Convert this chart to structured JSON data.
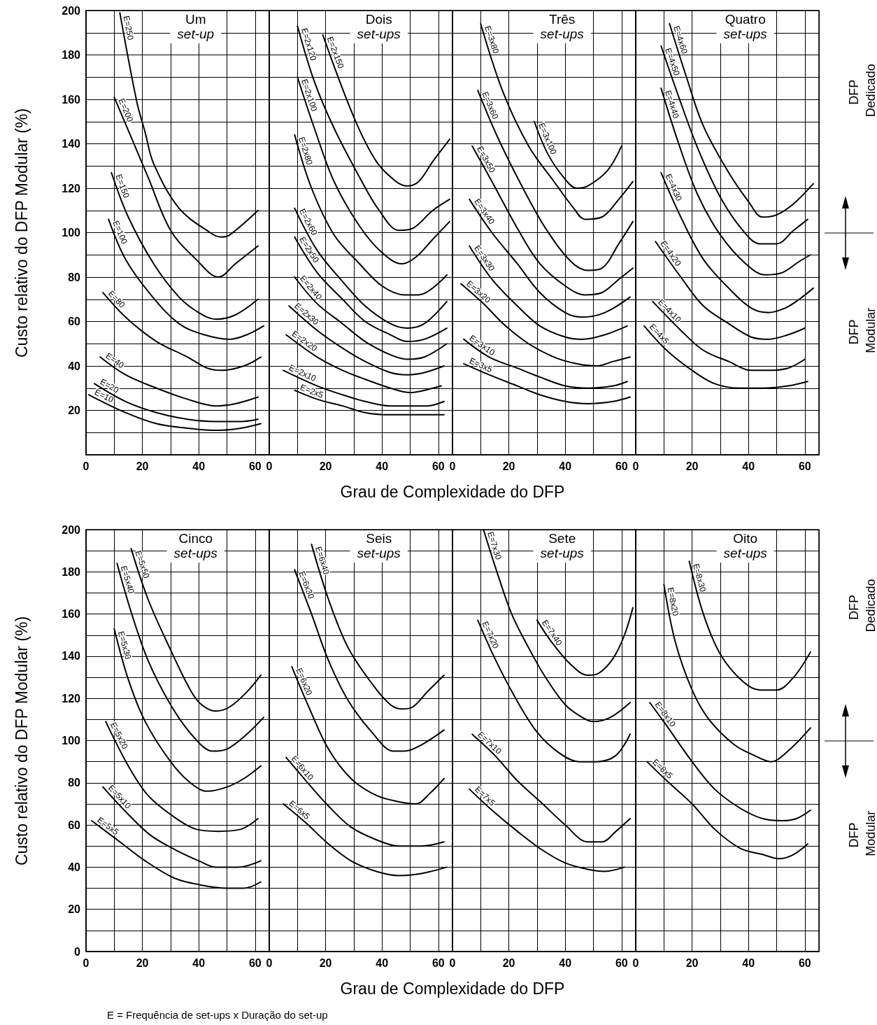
{
  "chart_data": [
    {
      "type": "line",
      "title": "Um",
      "subtitle": "set-up",
      "ylabel": "Custo relativo do DFP Modular (%)",
      "xlabel": "Grau de Complexidade do DFP",
      "xlim": [
        0,
        65
      ],
      "xticks": [
        0,
        20,
        40,
        60
      ],
      "ylim": [
        0,
        200
      ],
      "yticks": [
        20,
        40,
        60,
        80,
        100,
        120,
        140,
        160,
        180,
        200
      ],
      "grid": true,
      "marker": "none",
      "color": "#000000",
      "series": [
        {
          "name": "E=250",
          "x": [
            12,
            18,
            21,
            24,
            33,
            44,
            48,
            51,
            61
          ],
          "values": [
            199,
            159,
            145,
            131,
            111,
            100,
            98,
            99,
            110
          ]
        },
        {
          "name": "E=200",
          "x": [
            10,
            16,
            22,
            30,
            39,
            47,
            53,
            61
          ],
          "values": [
            161,
            143,
            125,
            101,
            88,
            80,
            86,
            94
          ]
        },
        {
          "name": "E=150",
          "x": [
            9,
            15,
            24,
            33,
            40,
            46,
            53,
            61
          ],
          "values": [
            127,
            107,
            86,
            71,
            64,
            61,
            63,
            70
          ]
        },
        {
          "name": "E=100",
          "x": [
            8,
            14,
            23,
            33,
            42,
            51,
            57,
            63
          ],
          "values": [
            106,
            88,
            72,
            59,
            54,
            52,
            54,
            58
          ]
        },
        {
          "name": "E=80",
          "x": [
            6,
            14,
            25,
            36,
            43,
            48,
            56,
            62
          ],
          "values": [
            73,
            62,
            51,
            44,
            39,
            38,
            40,
            44
          ]
        },
        {
          "name": "E=40",
          "x": [
            5,
            14,
            25,
            36,
            46,
            53,
            61
          ],
          "values": [
            44,
            36,
            30,
            25,
            22,
            23,
            26
          ]
        },
        {
          "name": "E=20",
          "x": [
            3,
            14,
            25,
            36,
            46,
            55,
            61
          ],
          "values": [
            32,
            24,
            19,
            16,
            15,
            15,
            16
          ]
        },
        {
          "name": "E=10",
          "x": [
            1,
            14,
            25,
            36,
            46,
            55,
            62
          ],
          "values": [
            27,
            19,
            14,
            12,
            11,
            12,
            14
          ]
        }
      ]
    },
    {
      "type": "line",
      "title": "Dois",
      "subtitle": "set-ups",
      "xlim": [
        0,
        65
      ],
      "xticks": [
        0,
        20,
        40,
        60
      ],
      "ylim": [
        0,
        200
      ],
      "yticks": [
        20,
        40,
        60,
        80,
        100,
        120,
        140,
        160,
        180,
        200
      ],
      "tick_labels": "x",
      "grid": true,
      "marker": "none",
      "color": "#000000",
      "series": [
        {
          "name": "E=2x150",
          "x": [
            19,
            30,
            38,
            45,
            49,
            53,
            58,
            64
          ],
          "values": [
            189,
            152,
            132,
            123,
            121,
            123,
            132,
            142
          ]
        },
        {
          "name": "E=2x120",
          "x": [
            10,
            16,
            23,
            32,
            39,
            46,
            51,
            58,
            64
          ],
          "values": [
            193,
            168,
            147,
            125,
            110,
            101,
            102,
            110,
            115
          ]
        },
        {
          "name": "E=2x100",
          "x": [
            10,
            16,
            23,
            32,
            40,
            47,
            52,
            58,
            64
          ],
          "values": [
            170,
            147,
            123,
            103,
            91,
            86,
            89,
            97,
            105
          ]
        },
        {
          "name": "E=2x80",
          "x": [
            9,
            15,
            23,
            32,
            40,
            48,
            53,
            63
          ],
          "values": [
            144,
            120,
            99,
            86,
            76,
            72,
            72,
            81
          ]
        },
        {
          "name": "E=2x60",
          "x": [
            9,
            17,
            26,
            34,
            43,
            49,
            55,
            63
          ],
          "values": [
            111,
            92,
            78,
            67,
            59,
            57,
            59,
            69
          ]
        },
        {
          "name": "E=2x50",
          "x": [
            9,
            17,
            26,
            34,
            43,
            49,
            55,
            63
          ],
          "values": [
            98,
            82,
            70,
            60,
            54,
            51,
            52,
            57
          ]
        },
        {
          "name": "E=2x40",
          "x": [
            9,
            17,
            26,
            34,
            43,
            49,
            55,
            63
          ],
          "values": [
            80,
            68,
            59,
            51,
            45,
            43,
            44,
            50
          ]
        },
        {
          "name": "E=2x30",
          "x": [
            7,
            17,
            26,
            34,
            43,
            49,
            55,
            62
          ],
          "values": [
            67,
            56,
            48,
            42,
            37,
            36,
            37,
            40
          ]
        },
        {
          "name": "E=2x20",
          "x": [
            6,
            17,
            26,
            34,
            43,
            50,
            55,
            61
          ],
          "values": [
            54,
            44,
            38,
            34,
            30,
            28,
            29,
            31
          ]
        },
        {
          "name": "E=2x10",
          "x": [
            5,
            17,
            26,
            34,
            43,
            51,
            56,
            62
          ],
          "values": [
            38,
            31,
            27,
            24,
            22,
            22,
            22,
            24
          ]
        },
        {
          "name": "E=2x5",
          "x": [
            9,
            17,
            26,
            34,
            43,
            51,
            62
          ],
          "values": [
            29,
            25,
            22,
            19,
            18,
            18,
            18
          ]
        }
      ]
    },
    {
      "type": "line",
      "title": "Três",
      "subtitle": "set-ups",
      "xlim": [
        0,
        65
      ],
      "xticks": [
        0,
        20,
        40,
        60
      ],
      "ylim": [
        0,
        200
      ],
      "yticks": [
        20,
        40,
        60,
        80,
        100,
        120,
        140,
        160,
        180,
        200
      ],
      "tick_labels": "x",
      "grid": true,
      "marker": "none",
      "color": "#000000",
      "series": [
        {
          "name": "E=3x80",
          "x": [
            10,
            18,
            27,
            36,
            43,
            47,
            53,
            59,
            64
          ],
          "values": [
            194,
            163,
            139,
            123,
            111,
            106,
            107,
            115,
            123
          ]
        },
        {
          "name": "E=3x60",
          "x": [
            9,
            16,
            25,
            33,
            42,
            48,
            53,
            59,
            64
          ],
          "values": [
            164,
            143,
            120,
            102,
            87,
            83,
            84,
            95,
            105
          ]
        },
        {
          "name": "E=3x100",
          "x": [
            29,
            34,
            40,
            44,
            48,
            55,
            60
          ],
          "values": [
            150,
            135,
            124,
            120,
            121,
            128,
            139
          ]
        },
        {
          "name": "E=3x50",
          "x": [
            7,
            14,
            23,
            31,
            40,
            47,
            53,
            59,
            64
          ],
          "values": [
            139,
            123,
            102,
            86,
            76,
            72,
            73,
            79,
            84
          ]
        },
        {
          "name": "E=3x40",
          "x": [
            6,
            14,
            23,
            31,
            40,
            46,
            54,
            63
          ],
          "values": [
            115,
            100,
            86,
            73,
            64,
            62,
            64,
            71
          ]
        },
        {
          "name": "E=3x30",
          "x": [
            6,
            14,
            23,
            31,
            40,
            46,
            54,
            62
          ],
          "values": [
            94,
            79,
            67,
            58,
            53,
            52,
            54,
            58
          ]
        },
        {
          "name": "E=3x20",
          "x": [
            3,
            11,
            18,
            27,
            36,
            44,
            51,
            57,
            63
          ],
          "values": [
            77,
            68,
            59,
            50,
            44,
            41,
            40,
            42,
            44
          ]
        },
        {
          "name": "E=3x10",
          "x": [
            4,
            13,
            23,
            31,
            40,
            48,
            57,
            62
          ],
          "values": [
            52,
            44,
            39,
            35,
            31,
            30,
            31,
            33
          ]
        },
        {
          "name": "E=3x5",
          "x": [
            4,
            13,
            23,
            31,
            40,
            48,
            57,
            63
          ],
          "values": [
            41,
            36,
            31,
            27,
            24,
            23,
            24,
            26
          ]
        }
      ]
    },
    {
      "type": "line",
      "title": "Quatro",
      "subtitle": "set-ups",
      "annotations": [
        "DFP Dedicado",
        "DFP Modular"
      ],
      "xlim": [
        0,
        65
      ],
      "xticks": [
        0,
        20,
        40,
        60
      ],
      "ylim": [
        0,
        200
      ],
      "yticks": [
        20,
        40,
        60,
        80,
        100,
        120,
        140,
        160,
        180,
        200
      ],
      "tick_labels": "x",
      "grid": true,
      "marker": "none",
      "color": "#000000",
      "series": [
        {
          "name": "E=4x60",
          "x": [
            12,
            18,
            24,
            33,
            40,
            45,
            50,
            56,
            63
          ],
          "values": [
            194,
            170,
            148,
            127,
            114,
            107,
            108,
            113,
            122
          ]
        },
        {
          "name": "E=4x50",
          "x": [
            9,
            15,
            22,
            30,
            38,
            44,
            50,
            56,
            61
          ],
          "values": [
            184,
            162,
            138,
            116,
            101,
            95,
            95,
            101,
            106
          ]
        },
        {
          "name": "E=4x40",
          "x": [
            9,
            15,
            22,
            30,
            39,
            46,
            52,
            58,
            62
          ],
          "values": [
            165,
            141,
            117,
            99,
            86,
            81,
            82,
            87,
            90
          ]
        },
        {
          "name": "E=4x30",
          "x": [
            9,
            16,
            24,
            33,
            41,
            47,
            53,
            58,
            63
          ],
          "values": [
            127,
            107,
            88,
            75,
            66,
            64,
            66,
            70,
            75
          ]
        },
        {
          "name": "E=4x20",
          "x": [
            7,
            16,
            24,
            33,
            41,
            47,
            54,
            60
          ],
          "values": [
            96,
            80,
            67,
            59,
            53,
            52,
            54,
            57
          ]
        },
        {
          "name": "E=4x10",
          "x": [
            6,
            16,
            24,
            33,
            41,
            47,
            54,
            60
          ],
          "values": [
            69,
            56,
            47,
            42,
            38,
            38,
            39,
            43
          ]
        },
        {
          "name": "E=4x5",
          "x": [
            3,
            11,
            20,
            28,
            37,
            45,
            54,
            61
          ],
          "values": [
            58,
            47,
            38,
            32,
            30,
            30,
            31,
            33
          ]
        }
      ]
    },
    {
      "type": "line",
      "title": "Cinco",
      "subtitle": "set-ups",
      "ylabel": "Custo relativo do DFP Modular (%)",
      "xlabel": "Grau de Complexidade do DFP",
      "annotations": [
        "E = Frequência de set-ups x Duração do set-up"
      ],
      "xlim": [
        0,
        65
      ],
      "xticks": [
        0,
        20,
        40,
        60
      ],
      "ylim": [
        0,
        200
      ],
      "yticks": [
        0,
        20,
        40,
        60,
        80,
        100,
        120,
        140,
        160,
        180,
        200
      ],
      "grid": true,
      "marker": "none",
      "color": "#000000",
      "series": [
        {
          "name": "E=5x50",
          "x": [
            16,
            22,
            30,
            37,
            41,
            46,
            51,
            57,
            62
          ],
          "values": [
            191,
            167,
            143,
            124,
            117,
            114,
            116,
            123,
            131
          ]
        },
        {
          "name": "E=5x40",
          "x": [
            11,
            16,
            22,
            30,
            38,
            45,
            50,
            57,
            63
          ],
          "values": [
            184,
            161,
            138,
            117,
            102,
            95,
            96,
            103,
            111
          ]
        },
        {
          "name": "E=5x30",
          "x": [
            10,
            15,
            21,
            30,
            37,
            43,
            50,
            56,
            62
          ],
          "values": [
            153,
            129,
            109,
            90,
            80,
            76,
            78,
            82,
            88
          ]
        },
        {
          "name": "E=5x20",
          "x": [
            7,
            15,
            22,
            31,
            39,
            47,
            55,
            61
          ],
          "values": [
            109,
            88,
            74,
            64,
            58,
            57,
            58,
            63
          ]
        },
        {
          "name": "E=5x10",
          "x": [
            6,
            15,
            23,
            32,
            40,
            46,
            54,
            62
          ],
          "values": [
            78,
            65,
            55,
            48,
            43,
            40,
            40,
            43
          ]
        },
        {
          "name": "E=5x5",
          "x": [
            2,
            12,
            21,
            31,
            39,
            50,
            56,
            62
          ],
          "values": [
            62,
            52,
            43,
            35,
            32,
            30,
            30,
            33
          ]
        }
      ]
    },
    {
      "type": "line",
      "title": "Seis",
      "subtitle": "set-ups",
      "xlim": [
        0,
        65
      ],
      "xticks": [
        0,
        20,
        40,
        60
      ],
      "ylim": [
        0,
        200
      ],
      "yticks": [
        0,
        20,
        40,
        60,
        80,
        100,
        120,
        140,
        160,
        180,
        200
      ],
      "tick_labels": "x",
      "grid": true,
      "marker": "none",
      "color": "#000000",
      "series": [
        {
          "name": "E=6x40",
          "x": [
            15,
            21,
            28,
            37,
            43,
            47,
            51,
            56,
            62
          ],
          "values": [
            193,
            167,
            144,
            126,
            117,
            115,
            116,
            123,
            131
          ]
        },
        {
          "name": "E=6x30",
          "x": [
            9,
            15,
            21,
            28,
            37,
            44,
            48,
            54,
            62
          ],
          "values": [
            181,
            160,
            138,
            119,
            103,
            95,
            95,
            98,
            105
          ]
        },
        {
          "name": "E=6x20",
          "x": [
            8,
            14,
            21,
            29,
            38,
            46,
            52,
            57,
            62
          ],
          "values": [
            135,
            116,
            96,
            82,
            74,
            71,
            70,
            75,
            82
          ]
        },
        {
          "name": "E=6x10",
          "x": [
            6,
            13,
            21,
            29,
            38,
            46,
            54,
            62
          ],
          "values": [
            92,
            81,
            69,
            59,
            53,
            50,
            50,
            52
          ]
        },
        {
          "name": "E=6x5",
          "x": [
            5,
            13,
            21,
            29,
            38,
            46,
            54,
            63
          ],
          "values": [
            70,
            61,
            51,
            43,
            38,
            36,
            37,
            40
          ]
        }
      ]
    },
    {
      "type": "line",
      "title": "Sete",
      "subtitle": "set-ups",
      "xlim": [
        0,
        65
      ],
      "xticks": [
        0,
        20,
        40,
        60
      ],
      "ylim": [
        0,
        200
      ],
      "yticks": [
        0,
        20,
        40,
        60,
        80,
        100,
        120,
        140,
        160,
        180,
        200
      ],
      "tick_labels": "x",
      "grid": true,
      "marker": "none",
      "color": "#000000",
      "series": [
        {
          "name": "E=7x40",
          "x": [
            30,
            35,
            42,
            48,
            52,
            57,
            61,
            64
          ],
          "values": [
            157,
            147,
            136,
            131,
            132,
            139,
            150,
            163
          ]
        },
        {
          "name": "E=7x30",
          "x": [
            11,
            16,
            21,
            27,
            33,
            40,
            46,
            50,
            56,
            63
          ],
          "values": [
            200,
            179,
            160,
            144,
            130,
            117,
            111,
            109,
            111,
            118
          ]
        },
        {
          "name": "E=7x20",
          "x": [
            9,
            15,
            22,
            30,
            38,
            45,
            51,
            58,
            63
          ],
          "values": [
            157,
            139,
            121,
            104,
            94,
            90,
            90,
            93,
            103
          ]
        },
        {
          "name": "E=7x10",
          "x": [
            7,
            15,
            23,
            32,
            40,
            48,
            53,
            58,
            63
          ],
          "values": [
            103,
            93,
            81,
            70,
            60,
            52,
            52,
            57,
            63
          ]
        },
        {
          "name": "E=7x5",
          "x": [
            6,
            14,
            23,
            32,
            40,
            48,
            54,
            61
          ],
          "values": [
            77,
            67,
            57,
            48,
            42,
            39,
            38,
            40
          ]
        }
      ]
    },
    {
      "type": "line",
      "title": "Oito",
      "subtitle": "set-ups",
      "annotations": [
        "DFP Dedicado",
        "DFP Modular"
      ],
      "xlim": [
        0,
        65
      ],
      "xticks": [
        0,
        20,
        40,
        60
      ],
      "ylim": [
        0,
        200
      ],
      "yticks": [
        0,
        20,
        40,
        60,
        80,
        100,
        120,
        140,
        160,
        180,
        200
      ],
      "tick_labels": "x",
      "grid": true,
      "marker": "none",
      "color": "#000000",
      "series": [
        {
          "name": "E=8x30",
          "x": [
            19,
            24,
            30,
            38,
            44,
            50,
            56,
            62
          ],
          "values": [
            185,
            160,
            141,
            128,
            124,
            124,
            130,
            142
          ]
        },
        {
          "name": "E=8x20",
          "x": [
            10,
            14,
            20,
            26,
            35,
            42,
            48,
            54,
            62
          ],
          "values": [
            174,
            147,
            124,
            110,
            98,
            93,
            90,
            95,
            106
          ]
        },
        {
          "name": "E=8x10",
          "x": [
            5,
            11,
            20,
            28,
            37,
            45,
            52,
            57,
            62
          ],
          "values": [
            118,
            107,
            90,
            77,
            68,
            63,
            62,
            63,
            67
          ]
        },
        {
          "name": "E=8x5",
          "x": [
            4,
            11,
            20,
            28,
            37,
            45,
            51,
            56,
            61
          ],
          "values": [
            90,
            81,
            70,
            58,
            49,
            46,
            44,
            46,
            51
          ]
        }
      ]
    }
  ]
}
